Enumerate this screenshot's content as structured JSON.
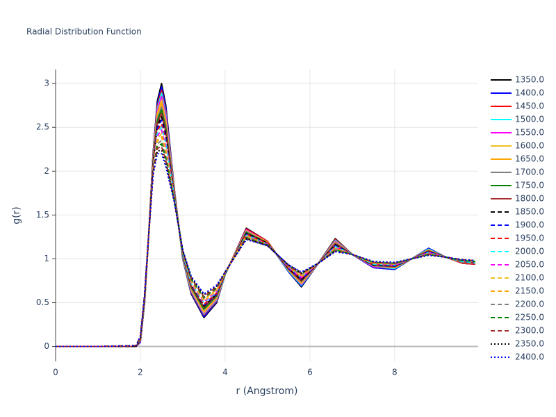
{
  "chart_data": {
    "type": "line",
    "title": "Radial Distribution Function",
    "xlabel": "r (Angstrom)",
    "ylabel": "g(r)",
    "xlim": [
      0,
      9.97
    ],
    "ylim": [
      -0.17,
      3.16
    ],
    "xticks": [
      0,
      2,
      4,
      6,
      8
    ],
    "yticks": [
      0,
      0.5,
      1,
      1.5,
      2,
      2.5,
      3
    ],
    "grid": true,
    "legend": "right",
    "x": [
      0,
      1,
      1.9,
      2.0,
      2.1,
      2.2,
      2.3,
      2.4,
      2.5,
      2.6,
      2.8,
      3.0,
      3.2,
      3.5,
      3.8,
      4.0,
      4.5,
      5.0,
      5.5,
      5.8,
      6.2,
      6.6,
      7.0,
      7.5,
      8.0,
      8.4,
      8.8,
      9.2,
      9.6,
      9.9
    ],
    "series": [
      {
        "name": "1350.0",
        "color": "#000000",
        "dash": "solid",
        "values": [
          0,
          0,
          0,
          0.05,
          0.5,
          1.3,
          2.2,
          2.8,
          3,
          2.75,
          1.8,
          1,
          0.6,
          0.33,
          0.5,
          0.82,
          1.35,
          1.2,
          0.85,
          0.68,
          0.95,
          1.23,
          1.05,
          0.9,
          0.88,
          1,
          1.12,
          1.02,
          0.95,
          0.94
        ]
      },
      {
        "name": "1400.0",
        "color": "#0000ff",
        "dash": "solid",
        "values": [
          0,
          0,
          0,
          0.05,
          0.5,
          1.3,
          2.19,
          2.77,
          2.96,
          2.72,
          1.79,
          1,
          0.61,
          0.34,
          0.51,
          0.82,
          1.34,
          1.2,
          0.85,
          0.69,
          0.95,
          1.22,
          1.05,
          0.9,
          0.88,
          1,
          1.12,
          1.02,
          0.95,
          0.94
        ]
      },
      {
        "name": "1450.0",
        "color": "#ff0000",
        "dash": "solid",
        "values": [
          0,
          0,
          0,
          0.06,
          0.51,
          1.3,
          2.18,
          2.74,
          2.92,
          2.68,
          1.79,
          1.01,
          0.62,
          0.36,
          0.52,
          0.82,
          1.34,
          1.2,
          0.86,
          0.7,
          0.95,
          1.22,
          1.05,
          0.91,
          0.89,
          1,
          1.11,
          1.02,
          0.95,
          0.94
        ]
      },
      {
        "name": "1500.0",
        "color": "#00ffff",
        "dash": "solid",
        "values": [
          0,
          0,
          0,
          0.06,
          0.51,
          1.3,
          2.16,
          2.71,
          2.89,
          2.65,
          1.78,
          1.01,
          0.63,
          0.37,
          0.53,
          0.82,
          1.33,
          1.19,
          0.86,
          0.7,
          0.95,
          1.21,
          1.05,
          0.91,
          0.89,
          1,
          1.11,
          1.02,
          0.96,
          0.95
        ]
      },
      {
        "name": "1550.0",
        "color": "#ff00ff",
        "dash": "solid",
        "values": [
          0,
          0,
          0,
          0.06,
          0.52,
          1.3,
          2.15,
          2.69,
          2.85,
          2.62,
          1.77,
          1.02,
          0.64,
          0.38,
          0.54,
          0.83,
          1.33,
          1.19,
          0.87,
          0.71,
          0.95,
          1.2,
          1.05,
          0.91,
          0.9,
          1,
          1.1,
          1.02,
          0.96,
          0.95
        ]
      },
      {
        "name": "1600.0",
        "color": "#f0c020",
        "dash": "solid",
        "values": [
          0,
          0,
          0,
          0.07,
          0.52,
          1.3,
          2.14,
          2.66,
          2.81,
          2.58,
          1.76,
          1.02,
          0.65,
          0.39,
          0.55,
          0.83,
          1.32,
          1.19,
          0.87,
          0.72,
          0.95,
          1.19,
          1.05,
          0.92,
          0.9,
          1,
          1.1,
          1.02,
          0.96,
          0.95
        ]
      },
      {
        "name": "1650.0",
        "color": "#ffa500",
        "dash": "solid",
        "values": [
          0,
          0,
          0,
          0.07,
          0.53,
          1.3,
          2.13,
          2.63,
          2.77,
          2.55,
          1.76,
          1.03,
          0.66,
          0.41,
          0.56,
          0.83,
          1.31,
          1.19,
          0.87,
          0.73,
          0.95,
          1.19,
          1.05,
          0.92,
          0.9,
          1,
          1.1,
          1.02,
          0.96,
          0.95
        ]
      },
      {
        "name": "1700.0",
        "color": "#808080",
        "dash": "solid",
        "values": [
          0,
          0,
          0,
          0.07,
          0.53,
          1.3,
          2.12,
          2.6,
          2.73,
          2.52,
          1.75,
          1.03,
          0.67,
          0.42,
          0.57,
          0.83,
          1.31,
          1.18,
          0.88,
          0.74,
          0.95,
          1.18,
          1.05,
          0.92,
          0.91,
          1,
          1.09,
          1.02,
          0.96,
          0.95
        ]
      },
      {
        "name": "1750.0",
        "color": "#008000",
        "dash": "solid",
        "values": [
          0,
          0,
          0,
          0.08,
          0.54,
          1.3,
          2.1,
          2.57,
          2.7,
          2.48,
          1.74,
          1.04,
          0.68,
          0.43,
          0.58,
          0.83,
          1.3,
          1.18,
          0.88,
          0.75,
          0.95,
          1.17,
          1.05,
          0.93,
          0.91,
          1,
          1.09,
          1.02,
          0.97,
          0.96
        ]
      },
      {
        "name": "1800.0",
        "color": "#a52a2a",
        "dash": "solid",
        "values": [
          0,
          0,
          0,
          0.08,
          0.54,
          1.3,
          2.09,
          2.54,
          2.66,
          2.45,
          1.74,
          1.04,
          0.69,
          0.45,
          0.59,
          0.83,
          1.29,
          1.18,
          0.88,
          0.75,
          0.95,
          1.17,
          1.05,
          0.93,
          0.91,
          1,
          1.09,
          1.02,
          0.97,
          0.96
        ]
      },
      {
        "name": "1850.0",
        "color": "#000000",
        "dash": "dash",
        "values": [
          0,
          0,
          0,
          0.08,
          0.55,
          1.3,
          2.08,
          2.51,
          2.62,
          2.42,
          1.73,
          1.05,
          0.7,
          0.46,
          0.6,
          0.83,
          1.29,
          1.18,
          0.89,
          0.76,
          0.95,
          1.16,
          1.05,
          0.93,
          0.92,
          1,
          1.08,
          1.02,
          0.97,
          0.96
        ]
      },
      {
        "name": "1900.0",
        "color": "#0000ff",
        "dash": "dash",
        "values": [
          0,
          0,
          0.01,
          0.09,
          0.55,
          1.3,
          2.07,
          2.49,
          2.58,
          2.38,
          1.72,
          1.05,
          0.7,
          0.47,
          0.6,
          0.84,
          1.28,
          1.17,
          0.89,
          0.77,
          0.95,
          1.15,
          1.05,
          0.94,
          0.92,
          1,
          1.08,
          1.02,
          0.97,
          0.96
        ]
      },
      {
        "name": "1950.0",
        "color": "#ff0000",
        "dash": "dash",
        "values": [
          0,
          0,
          0.01,
          0.09,
          0.56,
          1.3,
          2.06,
          2.46,
          2.54,
          2.35,
          1.71,
          1.06,
          0.71,
          0.48,
          0.61,
          0.84,
          1.28,
          1.17,
          0.9,
          0.78,
          0.95,
          1.14,
          1.05,
          0.94,
          0.93,
          1,
          1.07,
          1.02,
          0.97,
          0.96
        ]
      },
      {
        "name": "2000.0",
        "color": "#00ffff",
        "dash": "dash",
        "values": [
          0,
          0,
          0.01,
          0.09,
          0.56,
          1.3,
          2.05,
          2.43,
          2.5,
          2.32,
          1.71,
          1.06,
          0.72,
          0.5,
          0.62,
          0.84,
          1.27,
          1.17,
          0.9,
          0.79,
          0.95,
          1.14,
          1.05,
          0.94,
          0.93,
          1,
          1.07,
          1.02,
          0.97,
          0.96
        ]
      },
      {
        "name": "2050.0",
        "color": "#ff00ff",
        "dash": "dash",
        "values": [
          0,
          0,
          0.01,
          0.1,
          0.57,
          1.3,
          2.03,
          2.4,
          2.47,
          2.28,
          1.7,
          1.07,
          0.73,
          0.51,
          0.63,
          0.84,
          1.26,
          1.17,
          0.9,
          0.79,
          0.95,
          1.13,
          1.05,
          0.95,
          0.93,
          1,
          1.07,
          1.02,
          0.98,
          0.97
        ]
      },
      {
        "name": "2100.0",
        "color": "#f0c020",
        "dash": "dash",
        "values": [
          0,
          0,
          0.01,
          0.1,
          0.57,
          1.3,
          2.02,
          2.37,
          2.43,
          2.25,
          1.69,
          1.07,
          0.74,
          0.52,
          0.64,
          0.84,
          1.26,
          1.16,
          0.91,
          0.8,
          0.95,
          1.12,
          1.05,
          0.95,
          0.94,
          1,
          1.06,
          1.02,
          0.98,
          0.97
        ]
      },
      {
        "name": "2150.0",
        "color": "#ffa500",
        "dash": "dash",
        "values": [
          0,
          0,
          0.01,
          0.1,
          0.58,
          1.3,
          2.01,
          2.34,
          2.39,
          2.22,
          1.69,
          1.08,
          0.75,
          0.54,
          0.65,
          0.84,
          1.25,
          1.16,
          0.91,
          0.81,
          0.95,
          1.12,
          1.05,
          0.95,
          0.94,
          1,
          1.06,
          1.02,
          0.98,
          0.97
        ]
      },
      {
        "name": "2200.0",
        "color": "#808080",
        "dash": "dash",
        "values": [
          0,
          0,
          0.01,
          0.11,
          0.58,
          1.3,
          2,
          2.31,
          2.35,
          2.18,
          1.68,
          1.08,
          0.76,
          0.55,
          0.66,
          0.84,
          1.25,
          1.16,
          0.91,
          0.82,
          0.95,
          1.11,
          1.05,
          0.96,
          0.94,
          1,
          1.06,
          1.02,
          0.98,
          0.97
        ]
      },
      {
        "name": "2250.0",
        "color": "#008000",
        "dash": "dash",
        "values": [
          0,
          0,
          0.01,
          0.11,
          0.59,
          1.3,
          1.99,
          2.29,
          2.31,
          2.15,
          1.67,
          1.09,
          0.77,
          0.56,
          0.67,
          0.85,
          1.24,
          1.16,
          0.92,
          0.83,
          0.95,
          1.1,
          1.05,
          0.96,
          0.95,
          1,
          1.05,
          1.02,
          0.98,
          0.97
        ]
      },
      {
        "name": "2300.0",
        "color": "#a52a2a",
        "dash": "dash",
        "values": [
          0,
          0,
          0.01,
          0.11,
          0.59,
          1.3,
          1.97,
          2.26,
          2.28,
          2.12,
          1.66,
          1.09,
          0.78,
          0.57,
          0.68,
          0.85,
          1.23,
          1.15,
          0.92,
          0.83,
          0.95,
          1.09,
          1.05,
          0.96,
          0.95,
          1,
          1.05,
          1.02,
          0.99,
          0.98
        ]
      },
      {
        "name": "2350.0",
        "color": "#000000",
        "dash": "dot",
        "values": [
          0,
          0,
          0.01,
          0.12,
          0.6,
          1.3,
          1.96,
          2.23,
          2.24,
          2.08,
          1.66,
          1.1,
          0.79,
          0.59,
          0.69,
          0.85,
          1.23,
          1.15,
          0.93,
          0.84,
          0.95,
          1.09,
          1.05,
          0.97,
          0.96,
          1,
          1.04,
          1.02,
          0.99,
          0.98
        ]
      },
      {
        "name": "2400.0",
        "color": "#0000ff",
        "dash": "dot",
        "values": [
          0,
          0,
          0.01,
          0.12,
          0.6,
          1.3,
          1.95,
          2.2,
          2.2,
          2.05,
          1.65,
          1.1,
          0.8,
          0.6,
          0.7,
          0.85,
          1.22,
          1.15,
          0.93,
          0.85,
          0.95,
          1.08,
          1.05,
          0.97,
          0.96,
          1,
          1.04,
          1.02,
          0.99,
          0.98
        ]
      }
    ]
  }
}
